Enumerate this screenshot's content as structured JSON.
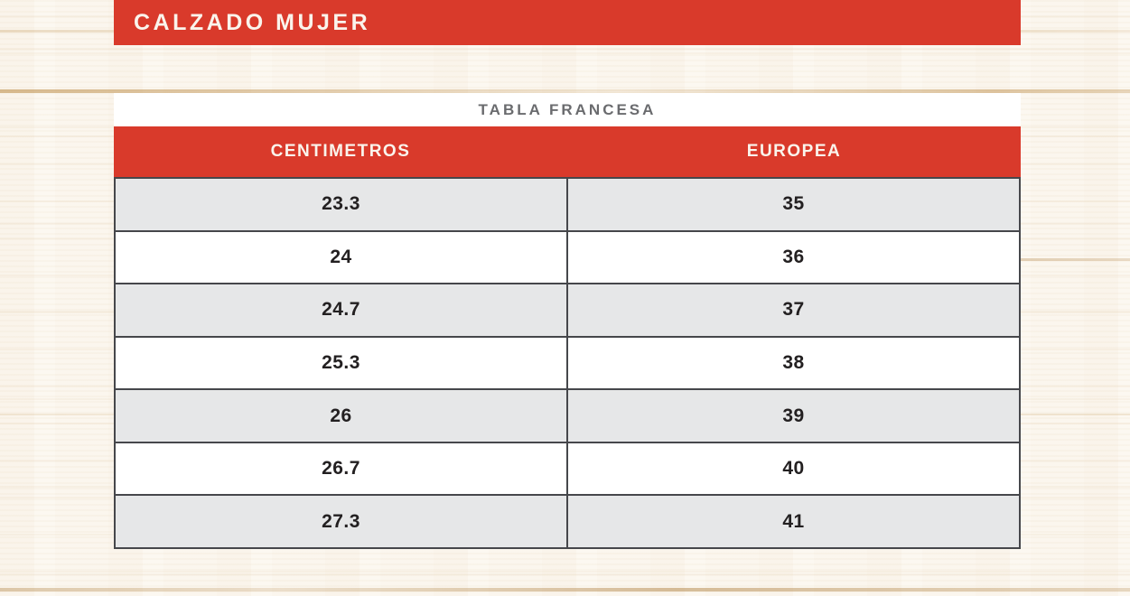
{
  "header": {
    "title": "CALZADO MUJER"
  },
  "chart_data": {
    "type": "table",
    "title": "TABLA FRANCESA",
    "columns": [
      "CENTIMETROS",
      "EUROPEA"
    ],
    "rows": [
      [
        "23.3",
        "35"
      ],
      [
        "24",
        "36"
      ],
      [
        "24.7",
        "37"
      ],
      [
        "25.3",
        "38"
      ],
      [
        "26",
        "39"
      ],
      [
        "26.7",
        "40"
      ],
      [
        "27.3",
        "41"
      ]
    ]
  },
  "colors": {
    "accent_red": "#d93a2b",
    "row_gray": "#e6e7e8",
    "title_gray": "#6a6b6e",
    "text_dark": "#232021",
    "text_light": "#faf4ec",
    "border_dark": "#46474b"
  }
}
